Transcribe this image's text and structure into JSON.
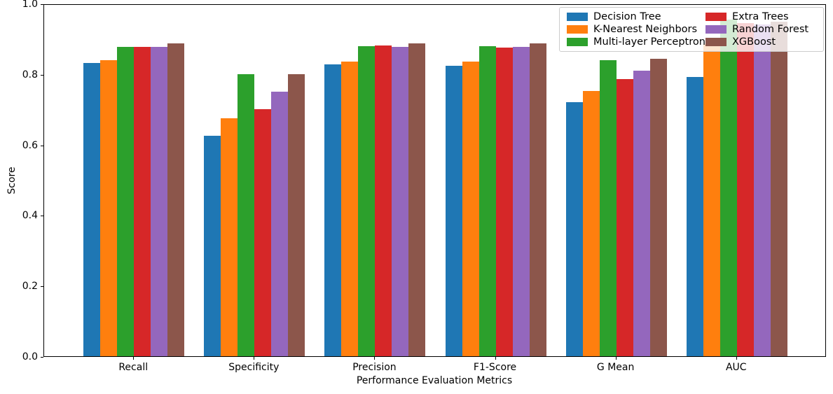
{
  "figure": {
    "xlabel": "Performance Evaluation Metrics",
    "ylabel": "Score"
  },
  "chart_data": {
    "type": "bar",
    "title": "",
    "xlabel": "Performance Evaluation Metrics",
    "ylabel": "Score",
    "categories": [
      "Recall",
      "Specificity",
      "Precision",
      "F1-Score",
      "G Mean",
      "AUC"
    ],
    "series": [
      {
        "name": "Decision Tree",
        "color": "#1f77b4",
        "values": [
          0.831,
          0.625,
          0.828,
          0.823,
          0.721,
          0.792
        ]
      },
      {
        "name": "K-Nearest Neighbors",
        "color": "#ff7f0e",
        "values": [
          0.84,
          0.675,
          0.836,
          0.836,
          0.753,
          0.885
        ]
      },
      {
        "name": "Multi-layer Perceptron",
        "color": "#2ca02c",
        "values": [
          0.878,
          0.8,
          0.879,
          0.879,
          0.84,
          0.955
        ]
      },
      {
        "name": "Extra Trees",
        "color": "#d62728",
        "values": [
          0.878,
          0.7,
          0.881,
          0.876,
          0.785,
          0.945
        ]
      },
      {
        "name": "Random Forest",
        "color": "#9467bd",
        "values": [
          0.877,
          0.75,
          0.877,
          0.877,
          0.81,
          0.94
        ]
      },
      {
        "name": "XGBoost",
        "color": "#8c564b",
        "values": [
          0.887,
          0.8,
          0.886,
          0.886,
          0.844,
          0.948
        ]
      }
    ],
    "ylim": [
      0.0,
      1.0
    ],
    "yticks": [
      0.0,
      0.2,
      0.4,
      0.6,
      0.8,
      1.0
    ],
    "grid": false,
    "legend_position": "upper right",
    "legend_columns": 2
  }
}
